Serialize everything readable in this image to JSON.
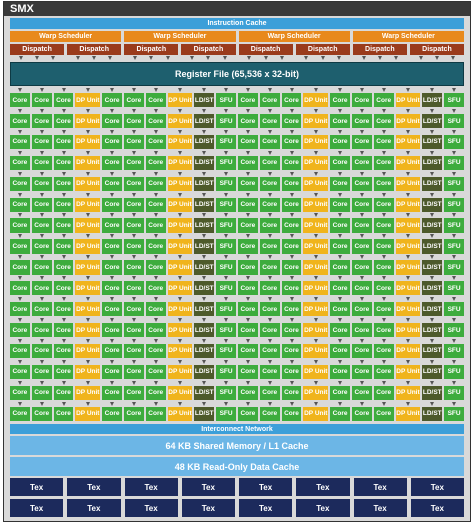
{
  "title": "SMX",
  "instruction_cache": "Instruction Cache",
  "warp_schedulers": [
    "Warp Scheduler",
    "Warp Scheduler",
    "Warp Scheduler",
    "Warp Scheduler"
  ],
  "dispatch_units": [
    "Dispatch",
    "Dispatch",
    "Dispatch",
    "Dispatch",
    "Dispatch",
    "Dispatch",
    "Dispatch",
    "Dispatch"
  ],
  "register_file": "Register File (65,536 x 32-bit)",
  "unit_row": [
    "Core",
    "Core",
    "Core",
    "DP Unit",
    "Core",
    "Core",
    "Core",
    "DP Unit",
    "LD/ST",
    "SFU",
    "Core",
    "Core",
    "Core",
    "DP Unit",
    "Core",
    "Core",
    "Core",
    "DP Unit",
    "LD/ST",
    "SFU"
  ],
  "interconnect": "Interconnect Network",
  "shared_memory": "64 KB Shared Memory / L1 Cache",
  "readonly_cache": "48 KB Read-Only Data Cache",
  "tex_units": [
    "Tex",
    "Tex",
    "Tex",
    "Tex",
    "Tex",
    "Tex",
    "Tex",
    "Tex",
    "Tex",
    "Tex",
    "Tex",
    "Tex",
    "Tex",
    "Tex",
    "Tex",
    "Tex"
  ]
}
